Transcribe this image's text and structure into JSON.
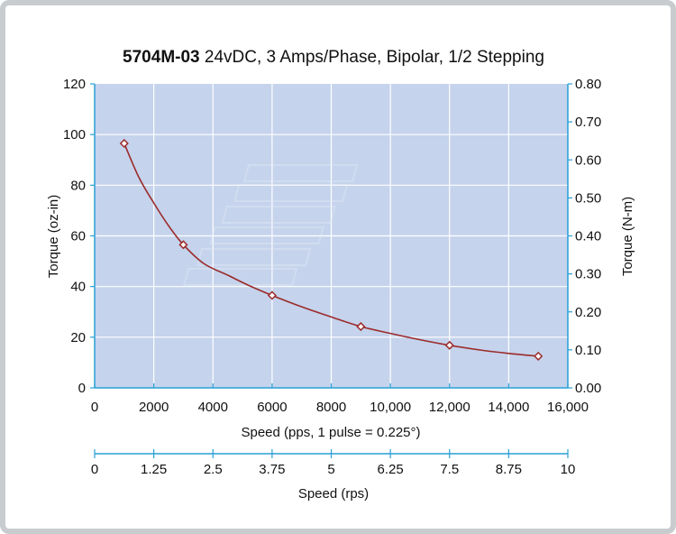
{
  "chart_data": {
    "type": "line",
    "title_bold": "5704M-03",
    "title_rest": " 24vDC, 3 Amps/Phase, Bipolar, 1/2 Stepping",
    "xlabel": "Speed (pps, 1 pulse = 0.225°)",
    "ylabel_left": "Torque (oz-in)",
    "ylabel_right": "Torque (N-m)",
    "xlim": [
      0,
      16000
    ],
    "ylim_left": [
      0,
      120
    ],
    "ylim_right": [
      0,
      0.8
    ],
    "x_tick_labels": [
      "0",
      "2000",
      "4000",
      "6000",
      "8000",
      "10,000",
      "12,000",
      "14,000",
      "16,000"
    ],
    "y_left_tick_labels": [
      "0",
      "20",
      "40",
      "60",
      "80",
      "100",
      "120"
    ],
    "y_right_tick_labels": [
      "0.00",
      "0.10",
      "0.20",
      "0.30",
      "0.40",
      "0.50",
      "0.60",
      "0.70",
      "0.80"
    ],
    "secondary_axis": {
      "label": "Speed (rps)",
      "range": [
        0,
        10
      ],
      "tick_labels": [
        "0",
        "1.25",
        "2.5",
        "3.75",
        "5",
        "6.25",
        "7.5",
        "8.75",
        "10"
      ]
    },
    "grid": true,
    "colors": {
      "plot_background": "#c5d3ec",
      "grid": "#ffffff",
      "axis": "#2a9fd6",
      "line": "#9b2a2a"
    },
    "series": [
      {
        "markers": [
          {
            "x": 1000,
            "y": 96.5
          },
          {
            "x": 3000,
            "y": 56.5
          },
          {
            "x": 6000,
            "y": 36.5
          },
          {
            "x": 9000,
            "y": 24.2
          },
          {
            "x": 12000,
            "y": 16.8
          },
          {
            "x": 15000,
            "y": 12.5
          }
        ],
        "curve": [
          {
            "x": 1000,
            "y": 96.5
          },
          {
            "x": 1500,
            "y": 83
          },
          {
            "x": 2000,
            "y": 73
          },
          {
            "x": 2500,
            "y": 64
          },
          {
            "x": 3000,
            "y": 56.5
          },
          {
            "x": 3700,
            "y": 49
          },
          {
            "x": 4500,
            "y": 44.5
          },
          {
            "x": 5200,
            "y": 40.5
          },
          {
            "x": 6000,
            "y": 36.5
          },
          {
            "x": 7000,
            "y": 32
          },
          {
            "x": 8000,
            "y": 28
          },
          {
            "x": 9000,
            "y": 24.2
          },
          {
            "x": 10000,
            "y": 21.5
          },
          {
            "x": 11000,
            "y": 19
          },
          {
            "x": 12000,
            "y": 16.8
          },
          {
            "x": 13000,
            "y": 15
          },
          {
            "x": 14000,
            "y": 13.6
          },
          {
            "x": 15000,
            "y": 12.5
          }
        ]
      }
    ]
  }
}
